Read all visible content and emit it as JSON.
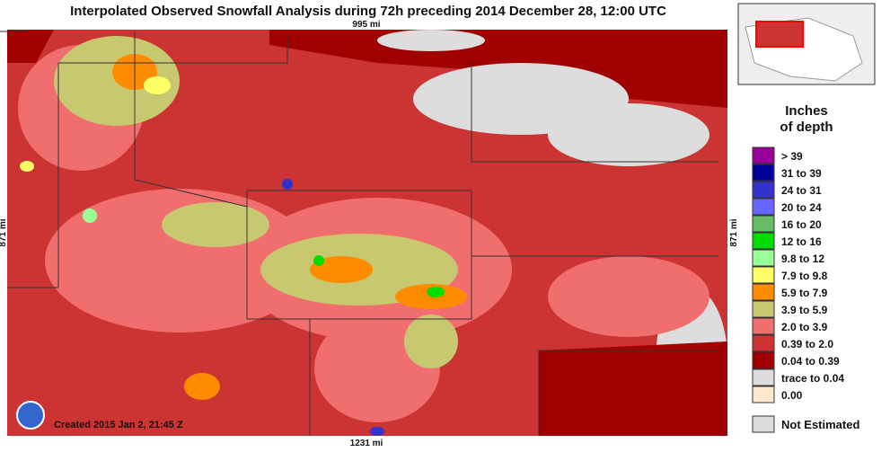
{
  "header": {
    "title": "Interpolated Observed Snowfall Analysis during 72h preceding 2014 December 28, 12:00 UTC"
  },
  "map": {
    "top_distance": "995 mi",
    "bottom_distance": "1231 mi",
    "left_distance": "871 mi",
    "right_distance": "871 mi",
    "created": "Created 2015 Jan 2, 21:45 Z"
  },
  "legend": {
    "title_lines": [
      "Inches",
      "of depth"
    ],
    "rows": [
      {
        "label": ">  39",
        "color": "#990099"
      },
      {
        "label": "31  to  39",
        "color": "#000099"
      },
      {
        "label": "24  to  31",
        "color": "#3333cc"
      },
      {
        "label": "20  to  24",
        "color": "#6666ff"
      },
      {
        "label": "16  to  20",
        "color": "#66bb66"
      },
      {
        "label": "12  to  16",
        "color": "#00dd00"
      },
      {
        "label": "9.8  to  12",
        "color": "#99ff99"
      },
      {
        "label": "7.9  to  9.8",
        "color": "#ffff66"
      },
      {
        "label": "5.9  to  7.9",
        "color": "#ff8c00"
      },
      {
        "label": "3.9  to  5.9",
        "color": "#c8c870"
      },
      {
        "label": "2.0  to  3.9",
        "color": "#f06e6e"
      },
      {
        "label": "0.39  to  2.0",
        "color": "#cc3333"
      },
      {
        "label": "0.04  to  0.39",
        "color": "#a00000"
      },
      {
        "label": "trace  to  0.04",
        "color": "#dddddd"
      },
      {
        "label": "0.00",
        "color": "#ffe8cc"
      }
    ],
    "not_estimated": "Not Estimated"
  }
}
